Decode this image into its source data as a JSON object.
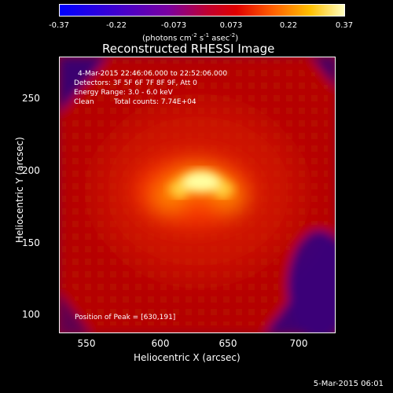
{
  "colorbar": {
    "tick_labels": [
      "-0.37",
      "-0.22",
      "-0.073",
      "0.073",
      "0.22",
      "0.37"
    ],
    "unit": "(photons cm",
    "unit_exp1": "-2",
    "unit_mid": " s",
    "unit_exp2": "-1",
    "unit_mid2": " asec",
    "unit_exp3": "-2",
    "unit_end": ")"
  },
  "title": "Reconstructed RHESSI Image",
  "info": {
    "time_range": "4-Mar-2015 22:46:06.000 to 22:52:06.000",
    "detectors": "Detectors: 3F 5F 6F 7F 8F 9F, Att 0",
    "energy": "Energy Range: 3.0 - 6.0 keV",
    "clean": "Clean",
    "total_counts": "Total counts: 7.74E+04",
    "peak": "Position of Peak = [630,191]"
  },
  "axes": {
    "xlabel": "Heliocentric X (arcsec)",
    "ylabel": "Heliocentric Y (arcsec)",
    "xticks": [
      "550",
      "600",
      "650",
      "700"
    ],
    "yticks": [
      "250",
      "200",
      "150",
      "100"
    ]
  },
  "footer": "5-Mar-2015 06:01",
  "colors": {
    "cmap_low": "#0000ff",
    "cmap_mid": "#c00000",
    "cmap_high": "#ffffa0"
  }
}
